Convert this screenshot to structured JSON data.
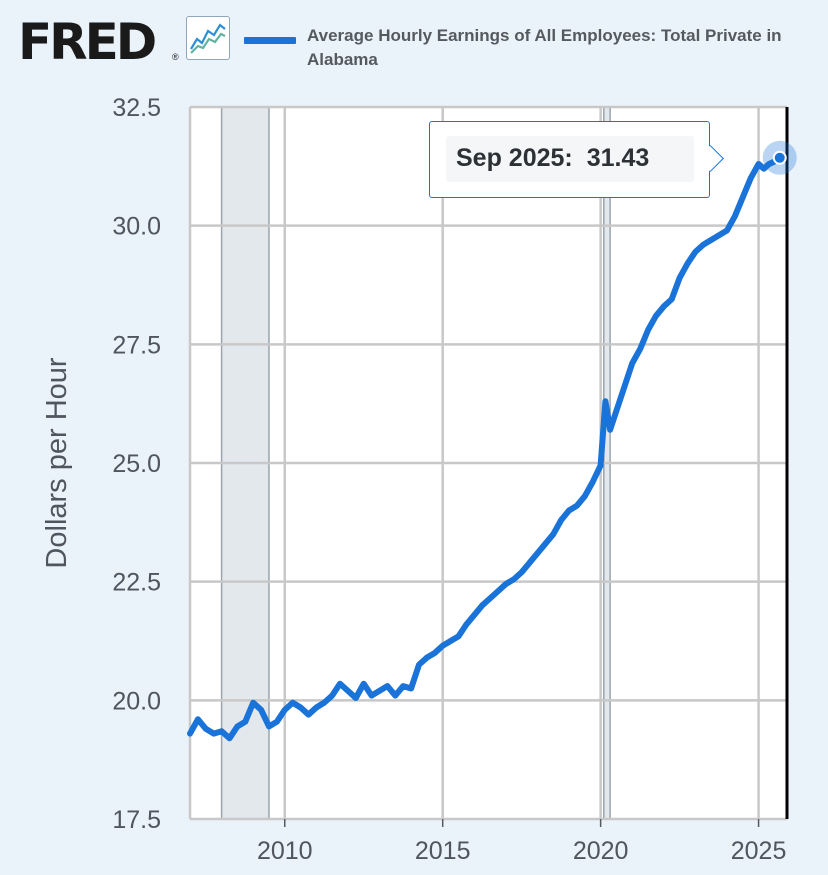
{
  "header": {
    "logo_text": "FRED",
    "logo_reg_mark": "®",
    "graph_icon": "line-graph-icon",
    "legend_color": "#1a73d9",
    "legend_label": "Average Hourly Earnings of All Employees: Total Private in Alabama"
  },
  "tooltip": {
    "date": "Sep 2025:",
    "value": "31.43"
  },
  "chart_data": {
    "type": "line",
    "title": "Average Hourly Earnings of All Employees: Total Private in Alabama",
    "xlabel": "",
    "ylabel": "Dollars per Hour",
    "xlim": [
      2007.0,
      2025.9
    ],
    "ylim": [
      17.5,
      32.5
    ],
    "yticks": [
      17.5,
      20.0,
      22.5,
      25.0,
      27.5,
      30.0,
      32.5
    ],
    "ytick_labels": [
      "17.5",
      "20.0",
      "22.5",
      "25.0",
      "27.5",
      "30.0",
      "32.5"
    ],
    "xticks": [
      2010,
      2015,
      2020,
      2025
    ],
    "xtick_labels": [
      "2010",
      "2015",
      "2020",
      "2025"
    ],
    "grid": true,
    "line_color": "#1a73d9",
    "recessions": [
      {
        "start": 2008.0,
        "end": 2009.5
      },
      {
        "start": 2020.1,
        "end": 2020.3
      }
    ],
    "highlight": {
      "x": 2025.67,
      "y": 31.43
    },
    "series": [
      {
        "name": "Average Hourly Earnings of All Employees: Total Private in Alabama",
        "x": [
          2007.0,
          2007.25,
          2007.5,
          2007.75,
          2008.0,
          2008.25,
          2008.5,
          2008.75,
          2009.0,
          2009.25,
          2009.5,
          2009.75,
          2010.0,
          2010.25,
          2010.5,
          2010.75,
          2011.0,
          2011.25,
          2011.5,
          2011.75,
          2012.0,
          2012.25,
          2012.5,
          2012.75,
          2013.0,
          2013.25,
          2013.5,
          2013.75,
          2014.0,
          2014.25,
          2014.5,
          2014.75,
          2015.0,
          2015.25,
          2015.5,
          2015.75,
          2016.0,
          2016.25,
          2016.5,
          2016.75,
          2017.0,
          2017.25,
          2017.5,
          2017.75,
          2018.0,
          2018.25,
          2018.5,
          2018.75,
          2019.0,
          2019.25,
          2019.5,
          2019.75,
          2020.0,
          2020.15,
          2020.3,
          2020.5,
          2020.75,
          2021.0,
          2021.25,
          2021.5,
          2021.75,
          2022.0,
          2022.25,
          2022.5,
          2022.75,
          2023.0,
          2023.25,
          2023.5,
          2023.75,
          2024.0,
          2024.25,
          2024.5,
          2024.75,
          2025.0,
          2025.17,
          2025.33,
          2025.5,
          2025.67
        ],
        "values": [
          19.3,
          19.6,
          19.4,
          19.3,
          19.35,
          19.2,
          19.45,
          19.55,
          19.95,
          19.8,
          19.45,
          19.55,
          19.8,
          19.95,
          19.85,
          19.7,
          19.85,
          19.95,
          20.1,
          20.35,
          20.2,
          20.05,
          20.35,
          20.1,
          20.2,
          20.3,
          20.1,
          20.3,
          20.25,
          20.75,
          20.9,
          21.0,
          21.15,
          21.25,
          21.35,
          21.6,
          21.8,
          22.0,
          22.15,
          22.3,
          22.45,
          22.55,
          22.7,
          22.9,
          23.1,
          23.3,
          23.5,
          23.8,
          24.0,
          24.1,
          24.3,
          24.6,
          24.95,
          26.3,
          25.7,
          26.1,
          26.6,
          27.1,
          27.4,
          27.8,
          28.1,
          28.3,
          28.45,
          28.9,
          29.2,
          29.45,
          29.6,
          29.7,
          29.8,
          29.9,
          30.2,
          30.6,
          31.0,
          31.3,
          31.2,
          31.3,
          31.35,
          31.43
        ]
      }
    ]
  }
}
